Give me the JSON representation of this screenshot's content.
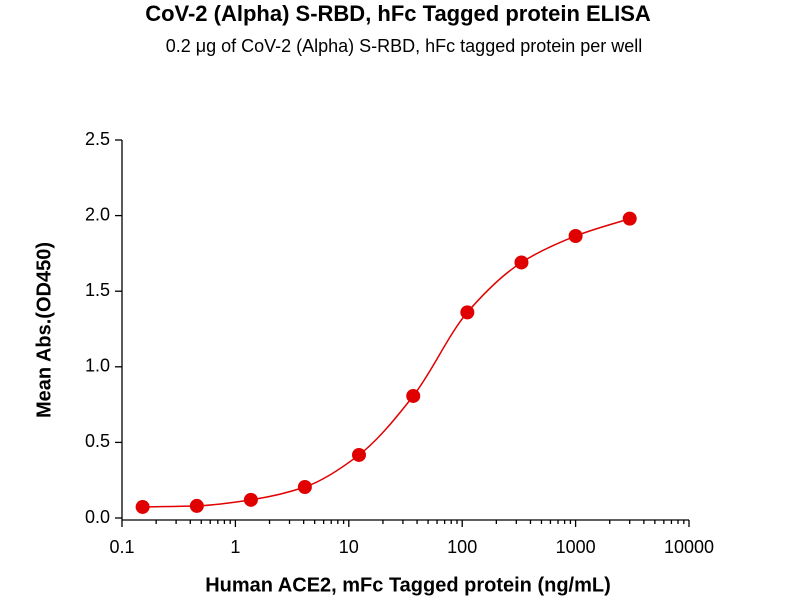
{
  "chart_data": {
    "type": "scatter",
    "title": "CoV-2 (Alpha) S-RBD, hFc Tagged protein ELISA",
    "subtitle": "0.2 μg of CoV-2 (Alpha) S-RBD, hFc tagged protein per well",
    "x_label": "Human ACE2, mFc Tagged protein (ng/mL)",
    "y_label": "Mean Abs.(OD450)",
    "x_scale": "log",
    "minor_ticks": true,
    "fit_curve": true,
    "color": "#e00000",
    "x": [
      0.152,
      0.457,
      1.37,
      4.1,
      12.3,
      37,
      111,
      333,
      1000,
      3000
    ],
    "values": [
      0.073,
      0.08,
      0.12,
      0.205,
      0.417,
      0.807,
      1.36,
      1.69,
      1.865,
      1.98
    ],
    "xlim": [
      0.1,
      10000
    ],
    "xticks": [
      0.1,
      1,
      10,
      100,
      1000,
      10000
    ],
    "ylim": [
      0,
      2.5
    ],
    "yticks": [
      {
        "value": 0,
        "label": "0.0"
      },
      0.5,
      {
        "value": 1,
        "label": "1.0"
      },
      1.5,
      {
        "value": 2,
        "label": "2.0"
      },
      2.5
    ]
  }
}
